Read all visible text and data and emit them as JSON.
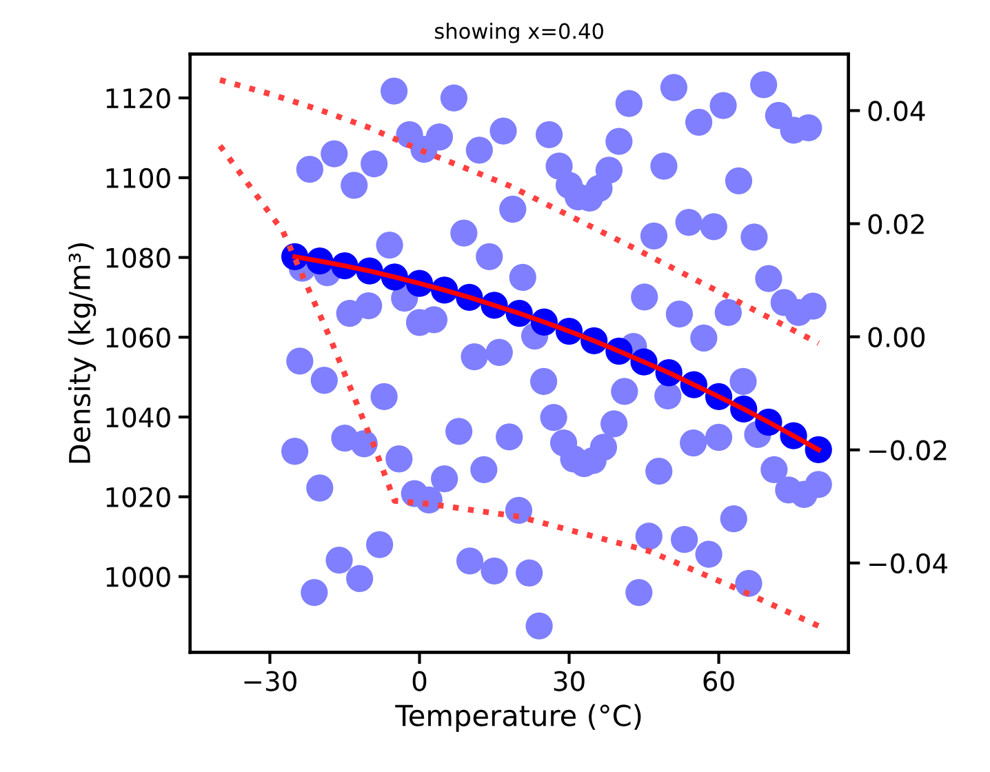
{
  "chart_data": {
    "type": "scatter",
    "title": "showing x=0.40",
    "xlabel": "Temperature (°C)",
    "ylabel": "Density (kg/m³)",
    "xlim": [
      -46,
      86
    ],
    "xticks": [
      {
        "value": -30,
        "label": "−30"
      },
      0,
      30,
      60
    ],
    "ylim": [
      981,
      1131
    ],
    "yticks": [
      1000,
      1020,
      1040,
      1060,
      1080,
      1100,
      1120
    ],
    "y2lim": [
      -0.0558,
      0.05
    ],
    "y2ticks": [
      {
        "value": -0.04,
        "label": "−0.04"
      },
      {
        "value": -0.02,
        "label": "−0.02"
      },
      {
        "value": 0,
        "label": "0.00"
      },
      0.02,
      0.04
    ],
    "series": [
      {
        "color": "#7f7fff",
        "marker": "circle",
        "x": [
          -5.1,
          6.9,
          -2.0,
          4.0,
          0.9,
          16.8,
          12.0,
          -17.1,
          -22.0,
          -9.1,
          -13.1,
          18.7,
          8.9,
          14.0,
          -6.0,
          20.7,
          -23.5,
          -18.5,
          -14.0,
          -10.2,
          -3.0,
          0,
          2.9,
          42.0,
          51.0,
          69.0,
          60.9,
          56.0,
          72.0,
          75.0,
          78.0,
          26.0,
          40.0,
          28.0,
          38.0,
          30.0,
          36.0,
          31.8,
          34.1,
          49.0,
          64.0,
          47.0,
          54.0,
          59.0,
          67.1,
          45.1,
          70.0,
          73.1,
          76.0,
          78.9,
          52.1,
          61.9,
          57.0,
          23.1,
          42.9,
          -24.0,
          -19.1,
          -7.1,
          11.0,
          16.0,
          7.9,
          18.0,
          12.9,
          5.0,
          -15.0,
          -11.1,
          -25.0,
          -4.1,
          -20.0,
          -1.0,
          1.9,
          19.9,
          -8.0,
          -16.1,
          -12.0,
          -21.1,
          10.1,
          15.0,
          24.9,
          41.1,
          49.8,
          64.9,
          26.9,
          39.0,
          28.9,
          36.9,
          30.9,
          33.0,
          34.8,
          48.0,
          54.9,
          60.0,
          67.8,
          71.1,
          74.0,
          77.1,
          80.0,
          63.0,
          46.0,
          53.1,
          58.0,
          66.0,
          22.0,
          44.0,
          24.0
        ],
        "values": [
          1121.7,
          1120,
          1110.8,
          1110.2,
          1107.1,
          1111.7,
          1106.9,
          1106,
          1102.1,
          1103.5,
          1098.1,
          1092.1,
          1086.1,
          1080.2,
          1083.1,
          1075,
          1077.3,
          1076.2,
          1066,
          1067.9,
          1069.8,
          1063.7,
          1064.4,
          1118.6,
          1122.6,
          1123.3,
          1118.1,
          1113.9,
          1115.6,
          1111.9,
          1112.5,
          1110.8,
          1109.1,
          1102.9,
          1101.9,
          1098.1,
          1097.3,
          1095.2,
          1094.9,
          1102.9,
          1099.2,
          1085.4,
          1088.8,
          1087.7,
          1085.1,
          1070.1,
          1074.7,
          1068.7,
          1066.2,
          1067.8,
          1065.8,
          1066.2,
          1059.8,
          1060.3,
          1057.7,
          1054.0,
          1049.2,
          1045.1,
          1055.1,
          1056.2,
          1036.4,
          1035,
          1026.8,
          1024.5,
          1034.7,
          1033.3,
          1031.4,
          1029.5,
          1022.2,
          1020.8,
          1019.2,
          1016.6,
          1008.0,
          1004.1,
          999.5,
          996.0,
          1003.9,
          1001.4,
          1048.9,
          1046.4,
          1045.3,
          1048.9,
          1039.9,
          1038.3,
          1033.5,
          1032.4,
          1029.5,
          1028.3,
          1029.1,
          1026.4,
          1033.5,
          1034.9,
          1035.6,
          1026.8,
          1021.7,
          1020.6,
          1023.1,
          1014.5,
          1010.1,
          1009.3,
          1005.6,
          998.3,
          1000.9,
          996.0,
          987.6
        ]
      },
      {
        "color": "#0000ff",
        "marker": "circle",
        "x": [
          -25,
          -20,
          -15,
          -10,
          -5,
          0,
          5,
          10,
          15,
          20,
          25,
          30,
          35,
          40,
          45,
          50,
          55,
          60,
          65,
          70,
          75,
          80
        ],
        "values": [
          1080.2,
          1079.1,
          1077.9,
          1076.6,
          1075.1,
          1073.5,
          1071.8,
          1070.0,
          1068.0,
          1066.0,
          1063.8,
          1061.5,
          1059.1,
          1056.5,
          1053.8,
          1051.1,
          1048.1,
          1045.1,
          1042.0,
          1038.7,
          1035.3,
          1031.8
        ]
      },
      {
        "type": "line",
        "color": "#ff0000",
        "marker": "none",
        "line_style": "solid",
        "x": [
          -25,
          -20,
          -15,
          -10,
          -5,
          0,
          5,
          10,
          15,
          20,
          25,
          30,
          35,
          40,
          45,
          50,
          55,
          60,
          65,
          70,
          75,
          80
        ],
        "values": [
          1080.2,
          1079.1,
          1077.9,
          1076.6,
          1075.1,
          1073.5,
          1071.8,
          1070.0,
          1068.0,
          1066.0,
          1063.8,
          1061.5,
          1059.1,
          1056.5,
          1053.8,
          1051.1,
          1048.1,
          1045.1,
          1042.0,
          1038.7,
          1035.3,
          1031.8
        ]
      },
      {
        "type": "line",
        "color": "#ff4040",
        "marker": "none",
        "line_style": "dotted",
        "x": [
          -40,
          -30,
          -20,
          -10,
          0,
          18,
          42,
          63,
          80
        ],
        "values": [
          1124.5,
          1121,
          1117,
          1112.5,
          1107,
          1098,
          1083,
          1069.5,
          1058.5
        ]
      },
      {
        "type": "line",
        "color": "#ff4040",
        "marker": "none",
        "line_style": "dotted",
        "x": [
          -40,
          -27.4,
          -18,
          -9.2,
          -5,
          2,
          20,
          46,
          64,
          80
        ],
        "values": [
          1108,
          1086.6,
          1060,
          1033,
          1019,
          1018.2,
          1015,
          1006.4,
          996.8,
          987.6
        ]
      }
    ]
  }
}
